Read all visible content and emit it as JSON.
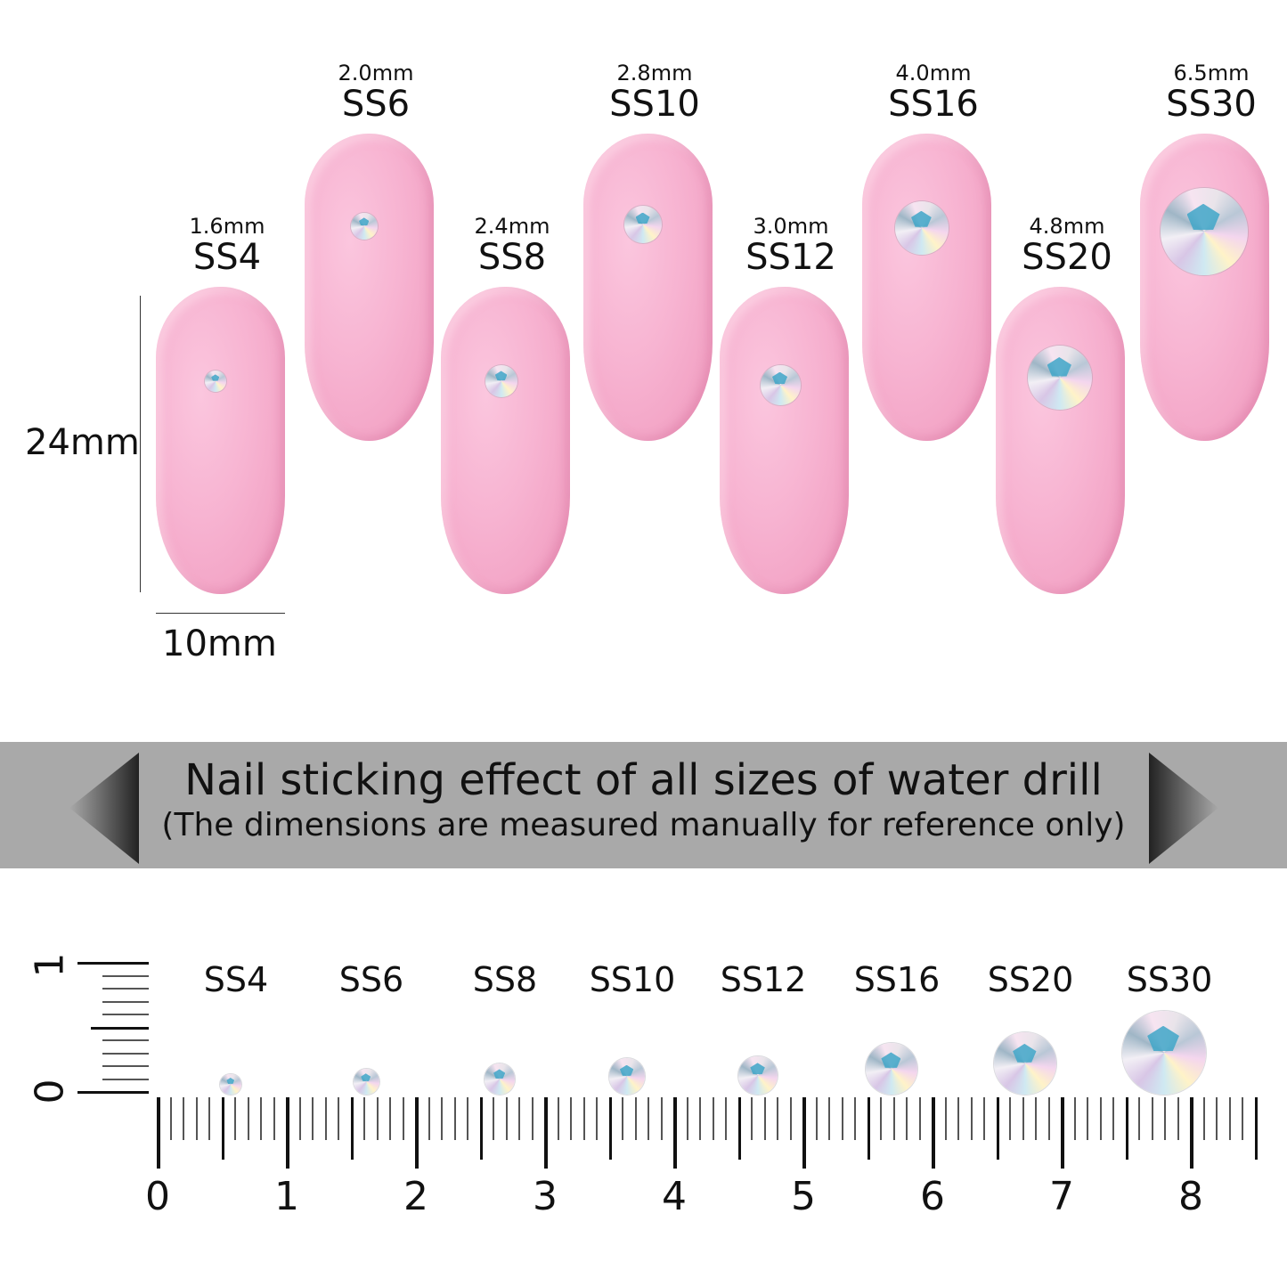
{
  "dimensions": {
    "height_label": "24mm",
    "width_label": "10mm"
  },
  "sizes": [
    {
      "ss": "SS4",
      "mm": "1.6mm",
      "diameter_mm": 1.6
    },
    {
      "ss": "SS6",
      "mm": "2.0mm",
      "diameter_mm": 2.0
    },
    {
      "ss": "SS8",
      "mm": "2.4mm",
      "diameter_mm": 2.4
    },
    {
      "ss": "SS10",
      "mm": "2.8mm",
      "diameter_mm": 2.8
    },
    {
      "ss": "SS12",
      "mm": "3.0mm",
      "diameter_mm": 3.0
    },
    {
      "ss": "SS16",
      "mm": "4.0mm",
      "diameter_mm": 4.0
    },
    {
      "ss": "SS20",
      "mm": "4.8mm",
      "diameter_mm": 4.8
    },
    {
      "ss": "SS30",
      "mm": "6.5mm",
      "diameter_mm": 6.5
    }
  ],
  "banner": {
    "title": "Nail sticking effect of all sizes of water drill",
    "subtitle": "(The dimensions are measured manually for reference only)"
  },
  "ruler": {
    "x_labels": [
      "0",
      "1",
      "2",
      "3",
      "4",
      "5",
      "6",
      "7",
      "8"
    ],
    "y_labels": [
      "0",
      "1"
    ],
    "unit": "cm"
  },
  "colors": {
    "nail_pink": "#f7b3d1",
    "banner_gray": "#a9a9a9"
  }
}
